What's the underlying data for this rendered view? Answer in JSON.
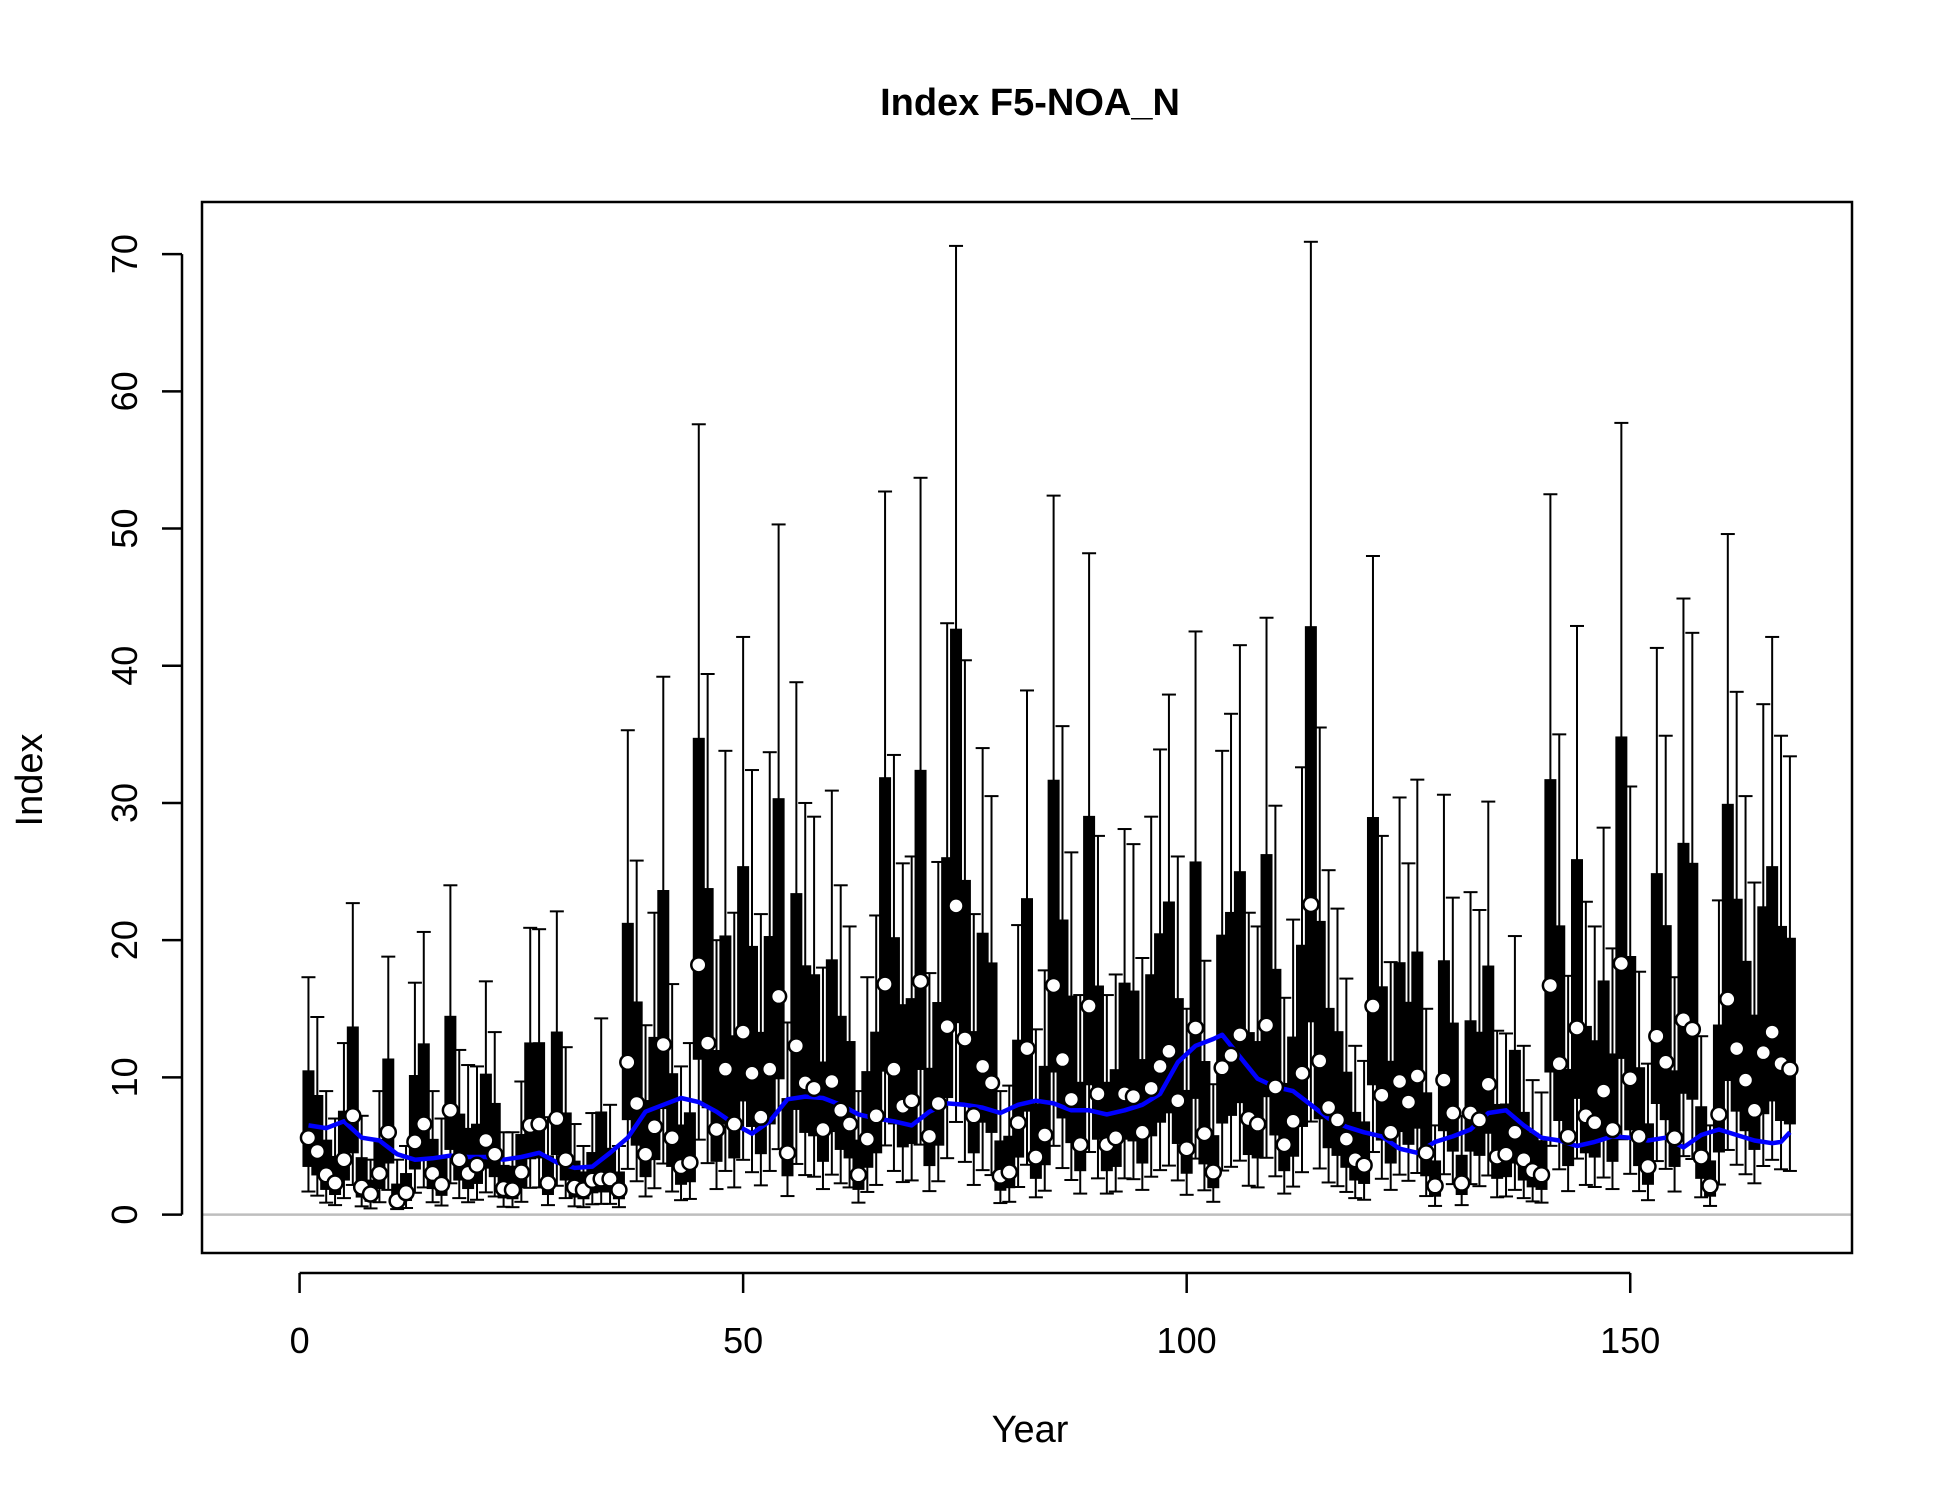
{
  "chart_data": {
    "type": "boxplot",
    "title": "Index F5-NOA_N",
    "xlabel": "Year",
    "ylabel": "Index",
    "xlim": [
      -11,
      175
    ],
    "ylim": [
      -2.8,
      73.8
    ],
    "x_ticks": [
      0,
      50,
      100,
      150
    ],
    "y_ticks": [
      0,
      10,
      20,
      30,
      40,
      50,
      60,
      70
    ],
    "grid": false,
    "legend": "none",
    "reference_line": {
      "y": 0,
      "color": "#bebebe"
    },
    "colors": {
      "boxes": "#000000",
      "points_fill": "#ffffff",
      "points_stroke": "#000000",
      "smooth": "#0000ff"
    },
    "observed_points": [
      {
        "x": 1,
        "y": 5.6
      },
      {
        "x": 2,
        "y": 4.6
      },
      {
        "x": 3,
        "y": 2.9
      },
      {
        "x": 4,
        "y": 2.3
      },
      {
        "x": 5,
        "y": 4.0
      },
      {
        "x": 6,
        "y": 7.2
      },
      {
        "x": 7,
        "y": 2.0
      },
      {
        "x": 8,
        "y": 1.5
      },
      {
        "x": 9,
        "y": 3.0
      },
      {
        "x": 10,
        "y": 6.0
      },
      {
        "x": 11,
        "y": 1.0
      },
      {
        "x": 12,
        "y": 1.6
      },
      {
        "x": 13,
        "y": 5.3
      },
      {
        "x": 14,
        "y": 6.6
      },
      {
        "x": 15,
        "y": 3.0
      },
      {
        "x": 16,
        "y": 2.2
      },
      {
        "x": 17,
        "y": 7.6
      },
      {
        "x": 18,
        "y": 4.0
      },
      {
        "x": 19,
        "y": 3.0
      },
      {
        "x": 20,
        "y": 3.6
      },
      {
        "x": 21,
        "y": 5.4
      },
      {
        "x": 22,
        "y": 4.4
      },
      {
        "x": 23,
        "y": 1.9
      },
      {
        "x": 24,
        "y": 1.8
      },
      {
        "x": 25,
        "y": 3.1
      },
      {
        "x": 26,
        "y": 6.5
      },
      {
        "x": 27,
        "y": 6.6
      },
      {
        "x": 28,
        "y": 2.3
      },
      {
        "x": 29,
        "y": 7.0
      },
      {
        "x": 30,
        "y": 4.0
      },
      {
        "x": 31,
        "y": 2.0
      },
      {
        "x": 32,
        "y": 1.8
      },
      {
        "x": 33,
        "y": 2.5
      },
      {
        "x": 34,
        "y": 2.6
      },
      {
        "x": 35,
        "y": 2.6
      },
      {
        "x": 36,
        "y": 1.8
      },
      {
        "x": 37,
        "y": 11.1
      },
      {
        "x": 38,
        "y": 8.1
      },
      {
        "x": 39,
        "y": 4.4
      },
      {
        "x": 40,
        "y": 6.4
      },
      {
        "x": 41,
        "y": 12.4
      },
      {
        "x": 42,
        "y": 5.6
      },
      {
        "x": 43,
        "y": 3.5
      },
      {
        "x": 44,
        "y": 3.8
      },
      {
        "x": 45,
        "y": 18.2
      },
      {
        "x": 46,
        "y": 12.5
      },
      {
        "x": 47,
        "y": 6.2
      },
      {
        "x": 48,
        "y": 10.6
      },
      {
        "x": 49,
        "y": 6.6
      },
      {
        "x": 50,
        "y": 13.3
      },
      {
        "x": 51,
        "y": 10.3
      },
      {
        "x": 52,
        "y": 7.1
      },
      {
        "x": 53,
        "y": 10.6
      },
      {
        "x": 54,
        "y": 15.9
      },
      {
        "x": 55,
        "y": 4.5
      },
      {
        "x": 56,
        "y": 12.3
      },
      {
        "x": 57,
        "y": 9.6
      },
      {
        "x": 58,
        "y": 9.2
      },
      {
        "x": 59,
        "y": 6.2
      },
      {
        "x": 60,
        "y": 9.7
      },
      {
        "x": 61,
        "y": 7.6
      },
      {
        "x": 62,
        "y": 6.6
      },
      {
        "x": 63,
        "y": 2.9
      },
      {
        "x": 64,
        "y": 5.5
      },
      {
        "x": 65,
        "y": 7.2
      },
      {
        "x": 66,
        "y": 16.8
      },
      {
        "x": 67,
        "y": 10.6
      },
      {
        "x": 68,
        "y": 7.9
      },
      {
        "x": 69,
        "y": 8.3
      },
      {
        "x": 70,
        "y": 17.0
      },
      {
        "x": 71,
        "y": 5.7
      },
      {
        "x": 72,
        "y": 8.1
      },
      {
        "x": 73,
        "y": 13.7
      },
      {
        "x": 74,
        "y": 22.5
      },
      {
        "x": 75,
        "y": 12.8
      },
      {
        "x": 76,
        "y": 7.2
      },
      {
        "x": 77,
        "y": 10.8
      },
      {
        "x": 78,
        "y": 9.6
      },
      {
        "x": 79,
        "y": 2.8
      },
      {
        "x": 80,
        "y": 3.1
      },
      {
        "x": 81,
        "y": 6.7
      },
      {
        "x": 82,
        "y": 12.1
      },
      {
        "x": 83,
        "y": 4.2
      },
      {
        "x": 84,
        "y": 5.8
      },
      {
        "x": 85,
        "y": 16.7
      },
      {
        "x": 86,
        "y": 11.3
      },
      {
        "x": 87,
        "y": 8.4
      },
      {
        "x": 88,
        "y": 5.1
      },
      {
        "x": 89,
        "y": 15.2
      },
      {
        "x": 90,
        "y": 8.8
      },
      {
        "x": 91,
        "y": 5.1
      },
      {
        "x": 92,
        "y": 5.6
      },
      {
        "x": 93,
        "y": 8.8
      },
      {
        "x": 94,
        "y": 8.6
      },
      {
        "x": 95,
        "y": 6.0
      },
      {
        "x": 96,
        "y": 9.2
      },
      {
        "x": 97,
        "y": 10.8
      },
      {
        "x": 98,
        "y": 11.9
      },
      {
        "x": 99,
        "y": 8.3
      },
      {
        "x": 100,
        "y": 4.8
      },
      {
        "x": 101,
        "y": 13.6
      },
      {
        "x": 102,
        "y": 5.9
      },
      {
        "x": 103,
        "y": 3.1
      },
      {
        "x": 104,
        "y": 10.7
      },
      {
        "x": 105,
        "y": 11.6
      },
      {
        "x": 106,
        "y": 13.1
      },
      {
        "x": 107,
        "y": 7.0
      },
      {
        "x": 108,
        "y": 6.6
      },
      {
        "x": 109,
        "y": 13.8
      },
      {
        "x": 110,
        "y": 9.3
      },
      {
        "x": 111,
        "y": 5.1
      },
      {
        "x": 112,
        "y": 6.8
      },
      {
        "x": 113,
        "y": 10.3
      },
      {
        "x": 114,
        "y": 22.6
      },
      {
        "x": 115,
        "y": 11.2
      },
      {
        "x": 116,
        "y": 7.8
      },
      {
        "x": 117,
        "y": 6.9
      },
      {
        "x": 118,
        "y": 5.5
      },
      {
        "x": 119,
        "y": 4.0
      },
      {
        "x": 120,
        "y": 3.6
      },
      {
        "x": 121,
        "y": 15.2
      },
      {
        "x": 122,
        "y": 8.7
      },
      {
        "x": 123,
        "y": 6.0
      },
      {
        "x": 124,
        "y": 9.7
      },
      {
        "x": 125,
        "y": 8.2
      },
      {
        "x": 126,
        "y": 10.1
      },
      {
        "x": 127,
        "y": 4.5
      },
      {
        "x": 128,
        "y": 2.1
      },
      {
        "x": 129,
        "y": 9.8
      },
      {
        "x": 130,
        "y": 7.4
      },
      {
        "x": 131,
        "y": 2.3
      },
      {
        "x": 132,
        "y": 7.4
      },
      {
        "x": 133,
        "y": 6.9
      },
      {
        "x": 134,
        "y": 9.5
      },
      {
        "x": 135,
        "y": 4.2
      },
      {
        "x": 136,
        "y": 4.4
      },
      {
        "x": 137,
        "y": 6.0
      },
      {
        "x": 138,
        "y": 4.0
      },
      {
        "x": 139,
        "y": 3.2
      },
      {
        "x": 140,
        "y": 2.9
      },
      {
        "x": 141,
        "y": 16.7
      },
      {
        "x": 142,
        "y": 11.0
      },
      {
        "x": 143,
        "y": 5.7
      },
      {
        "x": 144,
        "y": 13.6
      },
      {
        "x": 145,
        "y": 7.2
      },
      {
        "x": 146,
        "y": 6.7
      },
      {
        "x": 147,
        "y": 9.0
      },
      {
        "x": 148,
        "y": 6.2
      },
      {
        "x": 149,
        "y": 18.3
      },
      {
        "x": 150,
        "y": 9.9
      },
      {
        "x": 151,
        "y": 5.7
      },
      {
        "x": 152,
        "y": 3.5
      },
      {
        "x": 153,
        "y": 13.0
      },
      {
        "x": 154,
        "y": 11.1
      },
      {
        "x": 155,
        "y": 5.6
      },
      {
        "x": 156,
        "y": 14.2
      },
      {
        "x": 157,
        "y": 13.5
      },
      {
        "x": 158,
        "y": 4.2
      },
      {
        "x": 159,
        "y": 2.1
      },
      {
        "x": 160,
        "y": 7.3
      },
      {
        "x": 161,
        "y": 15.7
      },
      {
        "x": 162,
        "y": 12.1
      },
      {
        "x": 163,
        "y": 9.8
      },
      {
        "x": 164,
        "y": 7.6
      },
      {
        "x": 165,
        "y": 11.8
      },
      {
        "x": 166,
        "y": 13.3
      },
      {
        "x": 167,
        "y": 11.0
      },
      {
        "x": 168,
        "y": 10.6
      }
    ],
    "whisker_upper": [
      17.3,
      14.4,
      9.0,
      7.0,
      12.5,
      22.7,
      7.2,
      4.0,
      9.0,
      18.8,
      4.0,
      5.0,
      16.9,
      20.6,
      9.0,
      7.0,
      24.0,
      12.0,
      10.9,
      10.8,
      17.0,
      13.3,
      6.0,
      6.0,
      9.7,
      20.9,
      20.8,
      7.1,
      22.1,
      12.2,
      6.6,
      5.0,
      7.4,
      14.3,
      8.0,
      5.0,
      35.3,
      25.8,
      13.8,
      22.0,
      39.2,
      16.8,
      10.8,
      12.5,
      57.6,
      39.4,
      20.0,
      33.8,
      22.0,
      42.1,
      32.4,
      21.9,
      33.7,
      50.3,
      14.0,
      38.8,
      30.0,
      29.0,
      18.0,
      30.9,
      24.0,
      21.0,
      9.0,
      17.3,
      21.8,
      52.7,
      33.5,
      25.6,
      26.1,
      53.7,
      17.6,
      25.7,
      43.1,
      70.6,
      40.4,
      21.9,
      34.0,
      30.5,
      9.0,
      9.4,
      21.1,
      38.2,
      13.5,
      17.8,
      52.4,
      35.6,
      26.4,
      16.0,
      48.2,
      27.6,
      16.0,
      17.5,
      28.1,
      27.0,
      18.7,
      29.0,
      33.9,
      37.9,
      26.1,
      15.0,
      42.5,
      18.5,
      9.5,
      33.8,
      36.5,
      41.5,
      22.0,
      21.0,
      43.5,
      29.8,
      15.8,
      21.5,
      32.6,
      70.9,
      35.5,
      25.1,
      22.3,
      17.2,
      12.3,
      11.2,
      48.0,
      27.6,
      18.4,
      30.4,
      25.6,
      31.7,
      15.0,
      6.5,
      30.6,
      23.1,
      7.2,
      23.5,
      22.2,
      30.1,
      13.4,
      13.2,
      20.3,
      12.3,
      9.8,
      8.9,
      52.5,
      35.0,
      17.4,
      42.9,
      22.8,
      21.0,
      28.2,
      19.4,
      57.7,
      31.2,
      17.7,
      11.0,
      41.3,
      34.9,
      17.3,
      44.9,
      42.4,
      13.0,
      6.5,
      22.9,
      49.6,
      38.1,
      30.5,
      24.2,
      37.2,
      42.1,
      34.9,
      33.4
    ],
    "smooth_line": [
      {
        "x": 1,
        "y": 6.5
      },
      {
        "x": 3,
        "y": 6.3
      },
      {
        "x": 5,
        "y": 6.8
      },
      {
        "x": 7,
        "y": 5.6
      },
      {
        "x": 9,
        "y": 5.4
      },
      {
        "x": 11,
        "y": 4.4
      },
      {
        "x": 13,
        "y": 4.0
      },
      {
        "x": 15,
        "y": 4.1
      },
      {
        "x": 17,
        "y": 4.3
      },
      {
        "x": 19,
        "y": 4.2
      },
      {
        "x": 21,
        "y": 4.2
      },
      {
        "x": 23,
        "y": 4.0
      },
      {
        "x": 25,
        "y": 4.2
      },
      {
        "x": 27,
        "y": 4.5
      },
      {
        "x": 29,
        "y": 3.8
      },
      {
        "x": 31,
        "y": 3.4
      },
      {
        "x": 33,
        "y": 3.5
      },
      {
        "x": 35,
        "y": 4.5
      },
      {
        "x": 37,
        "y": 5.6
      },
      {
        "x": 39,
        "y": 7.5
      },
      {
        "x": 41,
        "y": 8.0
      },
      {
        "x": 43,
        "y": 8.5
      },
      {
        "x": 45,
        "y": 8.2
      },
      {
        "x": 47,
        "y": 7.5
      },
      {
        "x": 49,
        "y": 6.6
      },
      {
        "x": 51,
        "y": 5.9
      },
      {
        "x": 53,
        "y": 6.8
      },
      {
        "x": 55,
        "y": 8.4
      },
      {
        "x": 57,
        "y": 8.6
      },
      {
        "x": 59,
        "y": 8.5
      },
      {
        "x": 61,
        "y": 8.0
      },
      {
        "x": 63,
        "y": 7.3
      },
      {
        "x": 65,
        "y": 7.0
      },
      {
        "x": 67,
        "y": 6.8
      },
      {
        "x": 69,
        "y": 6.5
      },
      {
        "x": 71,
        "y": 7.5
      },
      {
        "x": 73,
        "y": 8.1
      },
      {
        "x": 75,
        "y": 8.0
      },
      {
        "x": 77,
        "y": 7.8
      },
      {
        "x": 79,
        "y": 7.4
      },
      {
        "x": 81,
        "y": 8.0
      },
      {
        "x": 83,
        "y": 8.3
      },
      {
        "x": 85,
        "y": 8.1
      },
      {
        "x": 87,
        "y": 7.6
      },
      {
        "x": 89,
        "y": 7.6
      },
      {
        "x": 91,
        "y": 7.3
      },
      {
        "x": 93,
        "y": 7.6
      },
      {
        "x": 95,
        "y": 8.0
      },
      {
        "x": 97,
        "y": 8.8
      },
      {
        "x": 99,
        "y": 11.1
      },
      {
        "x": 101,
        "y": 12.3
      },
      {
        "x": 103,
        "y": 12.8
      },
      {
        "x": 104,
        "y": 13.1
      },
      {
        "x": 106,
        "y": 11.5
      },
      {
        "x": 108,
        "y": 9.9
      },
      {
        "x": 110,
        "y": 9.3
      },
      {
        "x": 112,
        "y": 9.0
      },
      {
        "x": 114,
        "y": 8.0
      },
      {
        "x": 116,
        "y": 7.0
      },
      {
        "x": 118,
        "y": 6.4
      },
      {
        "x": 120,
        "y": 6.0
      },
      {
        "x": 122,
        "y": 5.7
      },
      {
        "x": 124,
        "y": 4.8
      },
      {
        "x": 126,
        "y": 4.5
      },
      {
        "x": 128,
        "y": 5.3
      },
      {
        "x": 130,
        "y": 5.7
      },
      {
        "x": 132,
        "y": 6.2
      },
      {
        "x": 134,
        "y": 7.4
      },
      {
        "x": 136,
        "y": 7.6
      },
      {
        "x": 138,
        "y": 6.5
      },
      {
        "x": 140,
        "y": 5.6
      },
      {
        "x": 142,
        "y": 5.4
      },
      {
        "x": 144,
        "y": 5.0
      },
      {
        "x": 146,
        "y": 5.3
      },
      {
        "x": 148,
        "y": 5.7
      },
      {
        "x": 150,
        "y": 5.6
      },
      {
        "x": 152,
        "y": 5.4
      },
      {
        "x": 154,
        "y": 5.6
      },
      {
        "x": 156,
        "y": 4.9
      },
      {
        "x": 158,
        "y": 5.8
      },
      {
        "x": 160,
        "y": 6.2
      },
      {
        "x": 162,
        "y": 5.8
      },
      {
        "x": 164,
        "y": 5.4
      },
      {
        "x": 166,
        "y": 5.2
      },
      {
        "x": 167,
        "y": 5.3
      },
      {
        "x": 168,
        "y": 6.0
      }
    ]
  }
}
